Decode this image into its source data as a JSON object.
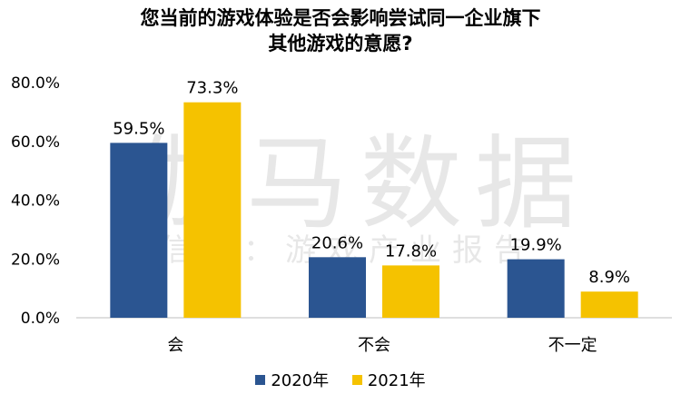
{
  "chart_data": {
    "type": "bar",
    "title_lines": [
      "您当前的游戏体验是否会影响尝试同一企业旗下",
      "其他游戏的意愿?"
    ],
    "categories": [
      "会",
      "不会",
      "不一定"
    ],
    "series": [
      {
        "name": "2020年",
        "values": [
          59.5,
          20.6,
          19.9
        ],
        "color": "#2B5591"
      },
      {
        "name": "2021年",
        "values": [
          73.3,
          17.8,
          8.9
        ],
        "color": "#F5C200"
      }
    ],
    "y_ticks": [
      "0.0%",
      "20.0%",
      "40.0%",
      "60.0%",
      "80.0%"
    ],
    "ylim": [
      0,
      80
    ],
    "grid": false,
    "legend_position": "bottom"
  },
  "watermark": {
    "main": "伽马数据",
    "sub": "微信号：游戏产业报告"
  }
}
